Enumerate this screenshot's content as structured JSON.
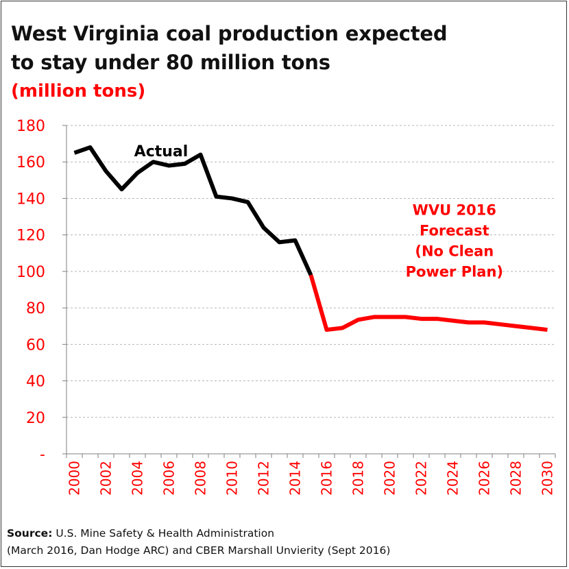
{
  "header": {
    "title_line1": "West Virginia coal production expected",
    "title_line2": "to stay under 80 million tons",
    "subtitle": "(million tons)"
  },
  "source": {
    "label": "Source:",
    "line1": "U.S. Mine Safety & Health Administration",
    "line2": "(March 2016, Dan Hodge ARC) and CBER Marshall Unvierity (Sept 2016)"
  },
  "colors": {
    "actual": "#000000",
    "forecast": "#ff0000",
    "axis_text": "#ff0000",
    "grid": "#b5b5b5"
  },
  "chart_data": {
    "type": "line",
    "title": "West Virginia coal production expected to stay under 80 million tons",
    "subtitle": "(million tons)",
    "xlabel": "",
    "ylabel": "",
    "xlim": [
      1999.5,
      2030.5
    ],
    "ylim": [
      0,
      180
    ],
    "y_ticks": [
      0,
      20,
      40,
      60,
      80,
      100,
      120,
      140,
      160,
      180
    ],
    "y_tick_labels": [
      "-",
      "20",
      "40",
      "60",
      "80",
      "100",
      "120",
      "140",
      "160",
      "180"
    ],
    "x_ticks": [
      2000,
      2002,
      2004,
      2006,
      2008,
      2010,
      2012,
      2014,
      2016,
      2018,
      2020,
      2022,
      2024,
      2026,
      2028,
      2030
    ],
    "grid": "horizontal dashed",
    "legend": "none",
    "series": [
      {
        "name": "Actual",
        "color": "#000000",
        "x": [
          2000,
          2001,
          2002,
          2003,
          2004,
          2005,
          2006,
          2007,
          2008,
          2009,
          2010,
          2011,
          2012,
          2013,
          2014,
          2015
        ],
        "values": [
          165,
          168,
          155,
          145,
          154,
          160,
          158,
          159,
          164,
          141,
          140,
          138,
          124,
          116,
          117,
          98
        ]
      },
      {
        "name": "WVU 2016 Forecast (No Clean Power Plan)",
        "color": "#ff0000",
        "x": [
          2015,
          2016,
          2017,
          2018,
          2019,
          2020,
          2021,
          2022,
          2023,
          2024,
          2025,
          2026,
          2027,
          2028,
          2029,
          2030
        ],
        "values": [
          98,
          68,
          69,
          73.5,
          75,
          75,
          75,
          74,
          74,
          73,
          72,
          72,
          71,
          70,
          69,
          68
        ]
      }
    ],
    "annotations": [
      {
        "text": "Actual",
        "color": "#000000",
        "x": 2005.5,
        "y": 163,
        "lines": [
          "Actual"
        ]
      },
      {
        "text": "WVU 2016 Forecast (No Clean Power Plan)",
        "color": "#ff0000",
        "x": 2024.1,
        "y": 131,
        "lines": [
          "WVU 2016",
          "Forecast",
          "(No Clean",
          "Power Plan)"
        ]
      }
    ]
  }
}
